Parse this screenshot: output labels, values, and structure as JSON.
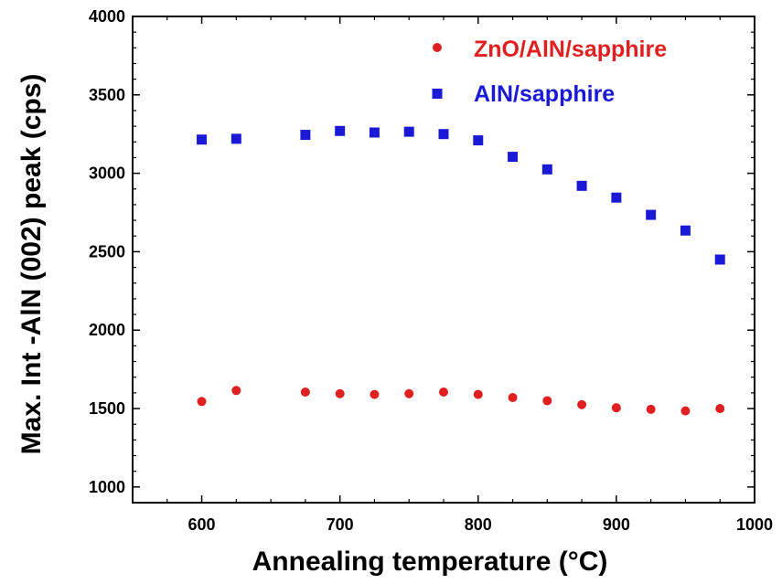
{
  "chart_data": {
    "type": "scatter",
    "xlabel": "Annealing temperature (°C)",
    "ylabel": "Max. Int -AlN (002) peak (cps)",
    "xlim": [
      550,
      1000
    ],
    "ylim": [
      900,
      4000
    ],
    "x_ticks": [
      600,
      700,
      800,
      900,
      1000
    ],
    "y_ticks": [
      1000,
      1500,
      2000,
      2500,
      3000,
      3500,
      4000
    ],
    "grid": false,
    "legend_position": "top-right",
    "series": [
      {
        "name": "ZnO/AlN/sapphire",
        "marker": "circle",
        "color": "#e02020",
        "x": [
          600,
          625,
          675,
          700,
          725,
          750,
          775,
          800,
          825,
          850,
          875,
          900,
          925,
          950,
          975
        ],
        "y": [
          1545,
          1615,
          1605,
          1595,
          1590,
          1595,
          1605,
          1590,
          1570,
          1550,
          1525,
          1505,
          1495,
          1485,
          1500
        ]
      },
      {
        "name": "AlN/sapphire",
        "marker": "square",
        "color": "#1a1ad6",
        "x": [
          600,
          625,
          675,
          700,
          725,
          750,
          775,
          800,
          825,
          850,
          875,
          900,
          925,
          950,
          975
        ],
        "y": [
          3215,
          3220,
          3245,
          3270,
          3260,
          3265,
          3250,
          3210,
          3105,
          3025,
          2920,
          2845,
          2735,
          2635,
          2450
        ]
      }
    ]
  }
}
